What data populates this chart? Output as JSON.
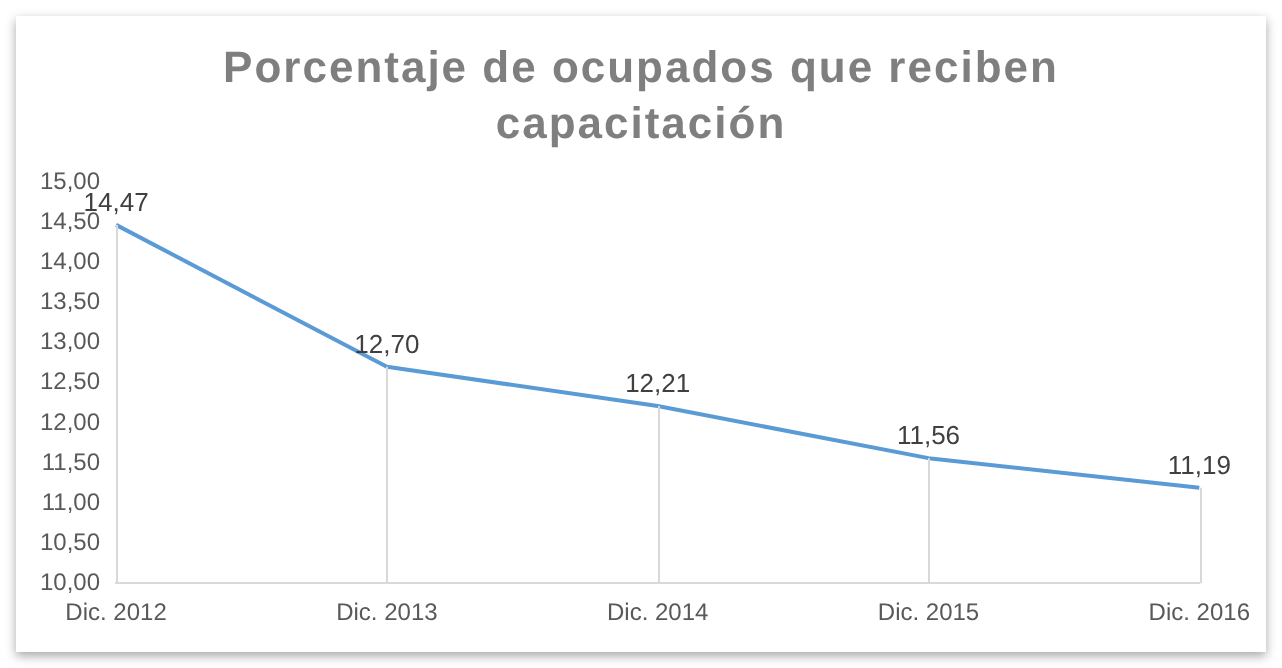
{
  "chart_data": {
    "type": "line",
    "title": "Porcentaje de ocupados que reciben capacitación",
    "categories": [
      "Dic. 2012",
      "Dic. 2013",
      "Dic. 2014",
      "Dic. 2015",
      "Dic. 2016"
    ],
    "series": [
      {
        "color": "#5b9bd5",
        "values": [
          14.47,
          12.7,
          12.21,
          11.56,
          11.19
        ],
        "value_labels": [
          "14,47",
          "12,70",
          "12,21",
          "11,56",
          "11,19"
        ]
      }
    ],
    "ylim": [
      10,
      15
    ],
    "yticks": [
      {
        "value": 10,
        "label": "10,00"
      },
      {
        "value": 10.5,
        "label": "10,50"
      },
      {
        "value": 11,
        "label": "11,00"
      },
      {
        "value": 11.5,
        "label": "11,50"
      },
      {
        "value": 12,
        "label": "12,00"
      },
      {
        "value": 12.5,
        "label": "12,50"
      },
      {
        "value": 13,
        "label": "13,00"
      },
      {
        "value": 13.5,
        "label": "13,50"
      },
      {
        "value": 14,
        "label": "14,00"
      },
      {
        "value": 14.5,
        "label": "14,50"
      },
      {
        "value": 15,
        "label": "15,00"
      }
    ],
    "grid": false,
    "legend": false,
    "marker": "none",
    "line_style": "solid"
  }
}
